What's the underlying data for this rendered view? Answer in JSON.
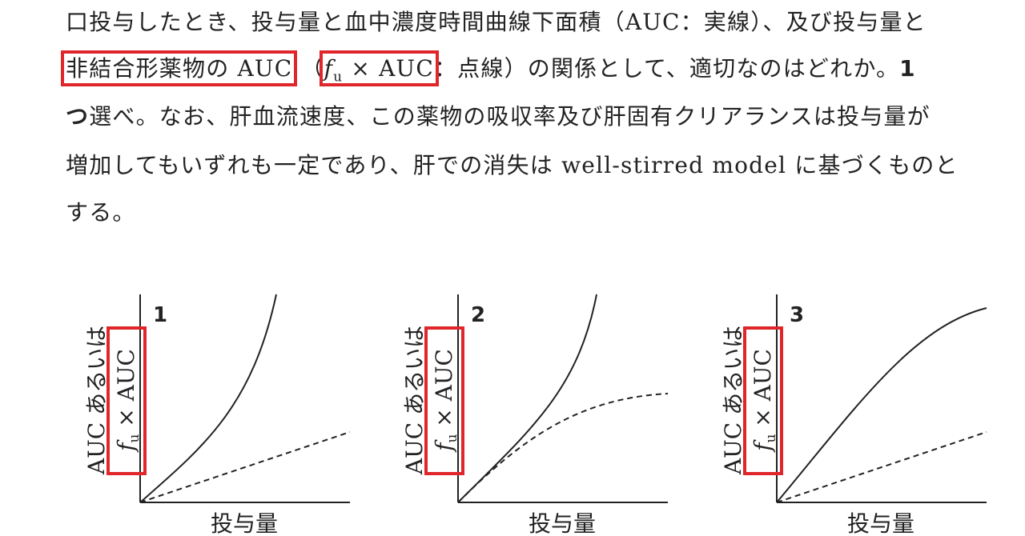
{
  "question": {
    "line1": "口投与したとき、投与量と血中濃度時間曲線下面積（AUC：実線）、及び投与量と",
    "line2": [
      "非結合形薬物の AUC",
      "（",
      "f",
      "u",
      " × AUC",
      "：点線）の関係として、適切なのはどれか。",
      "1"
    ],
    "line3": [
      "つ",
      "選べ。なお、肝血流速度、この薬物の吸収率及び肝固有クリアランスは投与量が"
    ],
    "line4": "増加してもいずれも一定であり、肝での消失は well-stirred model に基づくものと",
    "line5": "する。"
  },
  "panels": [
    {
      "number": "1",
      "y_label": "AUC あるいは",
      "y_label_f": "f",
      "y_label_u": "u",
      "y_label_rest": " × AUC",
      "x_label": "投与量"
    },
    {
      "number": "2",
      "y_label": "AUC あるいは",
      "y_label_f": "f",
      "y_label_u": "u",
      "y_label_rest": " × AUC",
      "x_label": "投与量"
    },
    {
      "number": "3",
      "y_label": "AUC あるいは",
      "y_label_f": "f",
      "y_label_u": "u",
      "y_label_rest": " × AUC",
      "x_label": "投与量"
    }
  ]
}
